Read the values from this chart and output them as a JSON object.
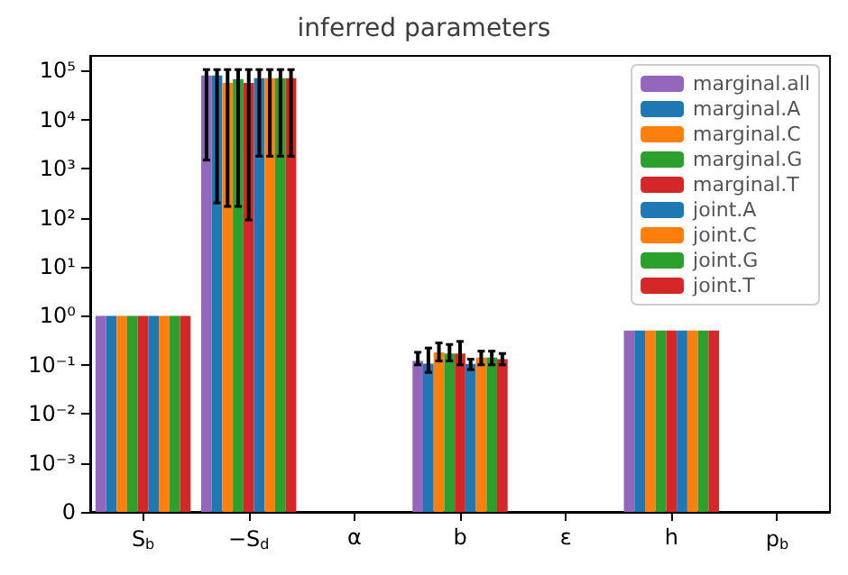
{
  "chart_data": {
    "type": "bar",
    "title": "inferred parameters",
    "categories": [
      "S$_{b}$",
      "−S$_{d}$",
      "α",
      "b",
      "ε",
      "h",
      "p$_{b}$"
    ],
    "log": "y",
    "ylim": [
      0,
      200000
    ],
    "yticks": [
      0,
      {
        "value": 0.001,
        "label": "10⁻³"
      },
      {
        "value": 0.01,
        "label": "10⁻²"
      },
      {
        "value": 0.1,
        "label": "10⁻¹"
      },
      {
        "value": 1,
        "label": "10⁰"
      },
      {
        "value": 10,
        "label": "10¹"
      },
      {
        "value": 100,
        "label": "10²"
      },
      {
        "value": 1000,
        "label": "10³"
      },
      {
        "value": 10000,
        "label": "10⁴"
      },
      {
        "value": 100000,
        "label": "10⁵"
      }
    ],
    "grid": false,
    "legend": "top right",
    "series": [
      {
        "name": "marginal.all",
        "color": "#9467bd",
        "values": [
          1,
          80000,
          0,
          0.12,
          0,
          0.5,
          0
        ],
        "errors": [
          null,
          [
            1500,
            105000
          ],
          null,
          [
            0.1,
            0.18
          ],
          null,
          null,
          null
        ]
      },
      {
        "name": "marginal.A",
        "color": "#1f77b4",
        "values": [
          1,
          80000,
          0,
          0.106,
          0,
          0.5,
          0
        ],
        "errors": [
          null,
          [
            200,
            105000
          ],
          null,
          [
            0.07,
            0.22
          ],
          null,
          null,
          null
        ]
      },
      {
        "name": "marginal.C",
        "color": "#ff7f0e",
        "values": [
          1,
          56000,
          0,
          0.18,
          0,
          0.5,
          0
        ],
        "errors": [
          null,
          [
            170,
            105000
          ],
          null,
          [
            0.12,
            0.28
          ],
          null,
          null,
          null
        ]
      },
      {
        "name": "marginal.G",
        "color": "#2ca02c",
        "values": [
          1,
          67000,
          0,
          0.17,
          0,
          0.5,
          0
        ],
        "errors": [
          null,
          [
            170,
            105000
          ],
          null,
          [
            0.12,
            0.26
          ],
          null,
          null,
          null
        ]
      },
      {
        "name": "marginal.T",
        "color": "#d62728",
        "values": [
          1,
          56000,
          0,
          0.17,
          0,
          0.5,
          0
        ],
        "errors": [
          null,
          [
            90,
            105000
          ],
          null,
          [
            0.1,
            0.3
          ],
          null,
          null,
          null
        ]
      },
      {
        "name": "joint.A",
        "color": "#1f77b4",
        "values": [
          1,
          70000,
          0,
          0.105,
          0,
          0.5,
          0
        ],
        "errors": [
          null,
          [
            1800,
            105000
          ],
          null,
          [
            0.08,
            0.13
          ],
          null,
          null,
          null
        ]
      },
      {
        "name": "joint.C",
        "color": "#ff7f0e",
        "values": [
          1,
          70000,
          0,
          0.14,
          0,
          0.5,
          0
        ],
        "errors": [
          null,
          [
            1800,
            105000
          ],
          null,
          [
            0.1,
            0.19
          ],
          null,
          null,
          null
        ]
      },
      {
        "name": "joint.G",
        "color": "#2ca02c",
        "values": [
          1,
          70000,
          0,
          0.14,
          0,
          0.5,
          0
        ],
        "errors": [
          null,
          [
            1800,
            105000
          ],
          null,
          [
            0.1,
            0.19
          ],
          null,
          null,
          null
        ]
      },
      {
        "name": "joint.T",
        "color": "#d62728",
        "values": [
          1,
          70000,
          0,
          0.13,
          0,
          0.5,
          0
        ],
        "errors": [
          null,
          [
            1800,
            105000
          ],
          null,
          [
            0.1,
            0.17
          ],
          null,
          null,
          null
        ]
      }
    ]
  }
}
